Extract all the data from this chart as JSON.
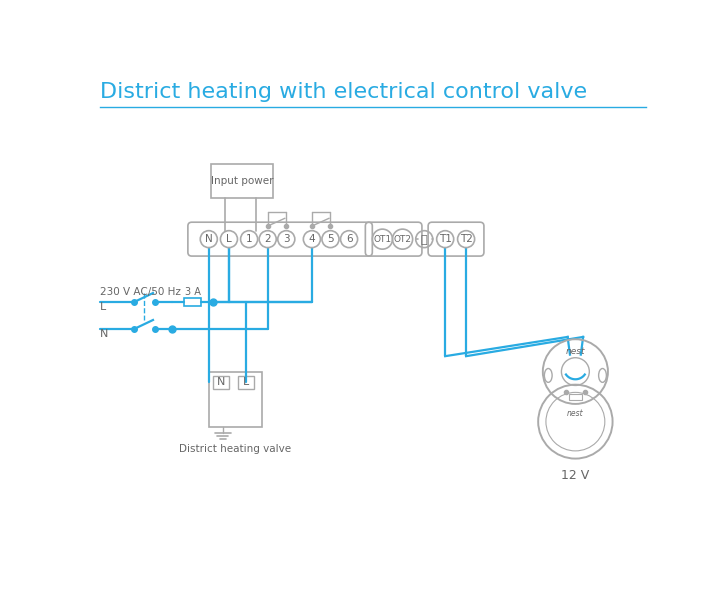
{
  "title": "District heating with electrical control valve",
  "title_color": "#29abe2",
  "title_fontsize": 16,
  "bg_color": "#ffffff",
  "line_color": "#29abe2",
  "gray_color": "#aaaaaa",
  "dark_gray": "#666666",
  "ac_label": "230 V AC/50 Hz",
  "fuse_label": "3 A",
  "l_label": "L",
  "n_label": "N",
  "valve_label": "District heating valve",
  "nest_label": "12 V",
  "term_labels": [
    "N",
    "L",
    "1",
    "2",
    "3",
    "4",
    "5",
    "6"
  ],
  "ot_labels": [
    "OT1",
    "OT2"
  ],
  "t_labels": [
    "T1",
    "T2"
  ]
}
